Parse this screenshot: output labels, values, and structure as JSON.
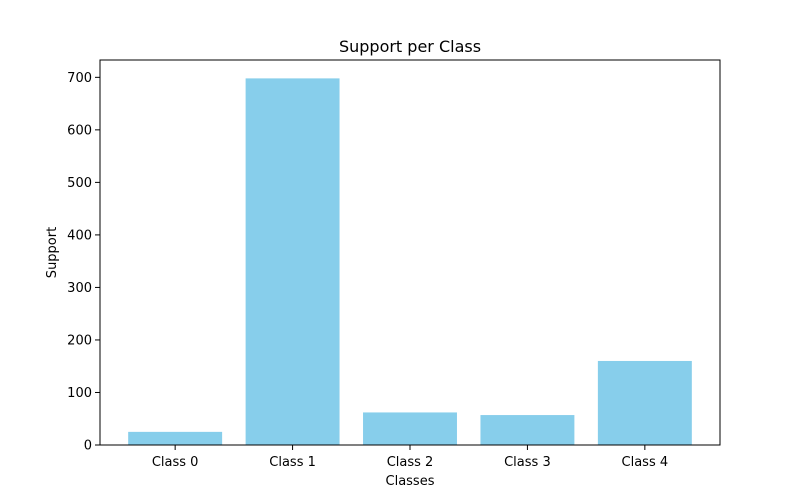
{
  "chart_data": {
    "type": "bar",
    "title": "Support per Class",
    "xlabel": "Classes",
    "ylabel": "Support",
    "categories": [
      "Class 0",
      "Class 1",
      "Class 2",
      "Class 3",
      "Class 4"
    ],
    "values": [
      25,
      698,
      62,
      57,
      160
    ],
    "ylim": [
      0,
      733
    ],
    "yticks": [
      0,
      100,
      200,
      300,
      400,
      500,
      600,
      700
    ],
    "bar_color": "#87ceeb",
    "grid": false,
    "legend": "none"
  }
}
